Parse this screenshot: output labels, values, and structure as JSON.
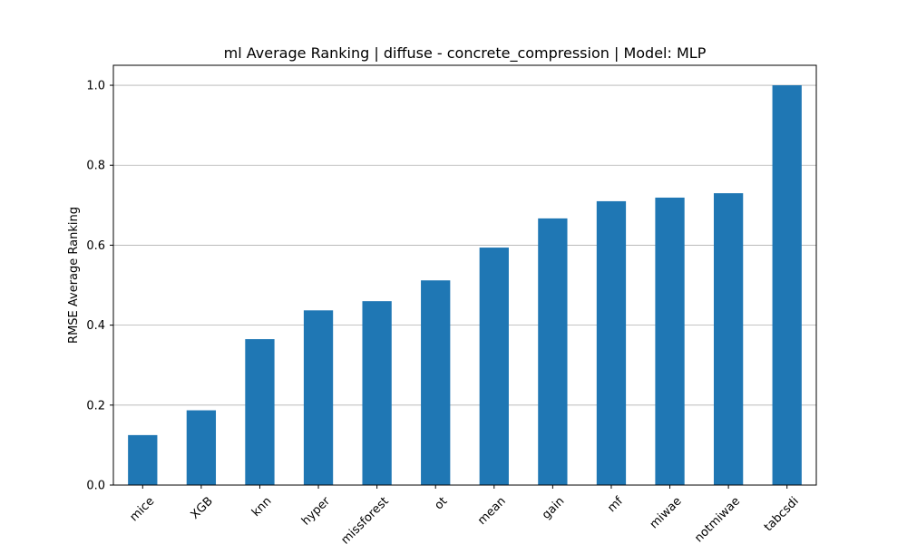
{
  "chart_data": {
    "type": "bar",
    "title": "ml Average Ranking | diffuse - concrete_compression | Model: MLP",
    "xlabel": "",
    "ylabel": "RMSE Average Ranking",
    "categories": [
      "mice",
      "XGB",
      "knn",
      "hyper",
      "missforest",
      "ot",
      "mean",
      "gain",
      "mf",
      "miwae",
      "notmiwae",
      "tabcsdi"
    ],
    "values": [
      0.125,
      0.187,
      0.365,
      0.437,
      0.46,
      0.512,
      0.594,
      0.667,
      0.71,
      0.719,
      0.73,
      1.0
    ],
    "ylim": [
      0,
      1.05
    ],
    "yticks": [
      0.0,
      0.2,
      0.4,
      0.6,
      0.8,
      1.0
    ],
    "ytick_labels": [
      "0.0",
      "0.2",
      "0.4",
      "0.6",
      "0.8",
      "1.0"
    ],
    "grid": "y",
    "bar_color": "#1f77b4",
    "grid_color": "#b0b0b0"
  }
}
